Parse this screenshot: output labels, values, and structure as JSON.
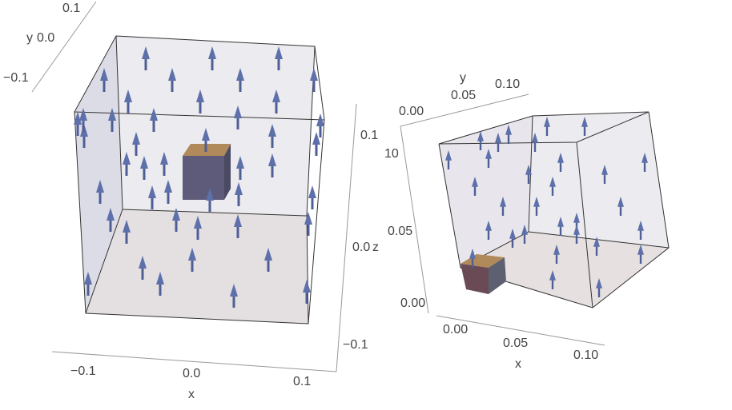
{
  "plot_left": {
    "y_axis": {
      "label": "y",
      "ticks": [
        "0.1",
        "0.0",
        "−0.1"
      ]
    },
    "z_axis": {
      "label": "z",
      "ticks": [
        "0.1",
        "0.0",
        "−0.1"
      ]
    },
    "x_axis": {
      "label": "x",
      "ticks": [
        "−0.1",
        "0.0",
        "0.1"
      ]
    }
  },
  "plot_right": {
    "y_axis": {
      "label": "y",
      "ticks": [
        "0.00",
        "0.05",
        "0.10"
      ]
    },
    "z_axis": {
      "ticks": [
        "10",
        "0.05",
        "0.00"
      ]
    },
    "x_axis": {
      "label": "x",
      "ticks": [
        "0.00",
        "0.05",
        "0.10"
      ]
    }
  }
}
